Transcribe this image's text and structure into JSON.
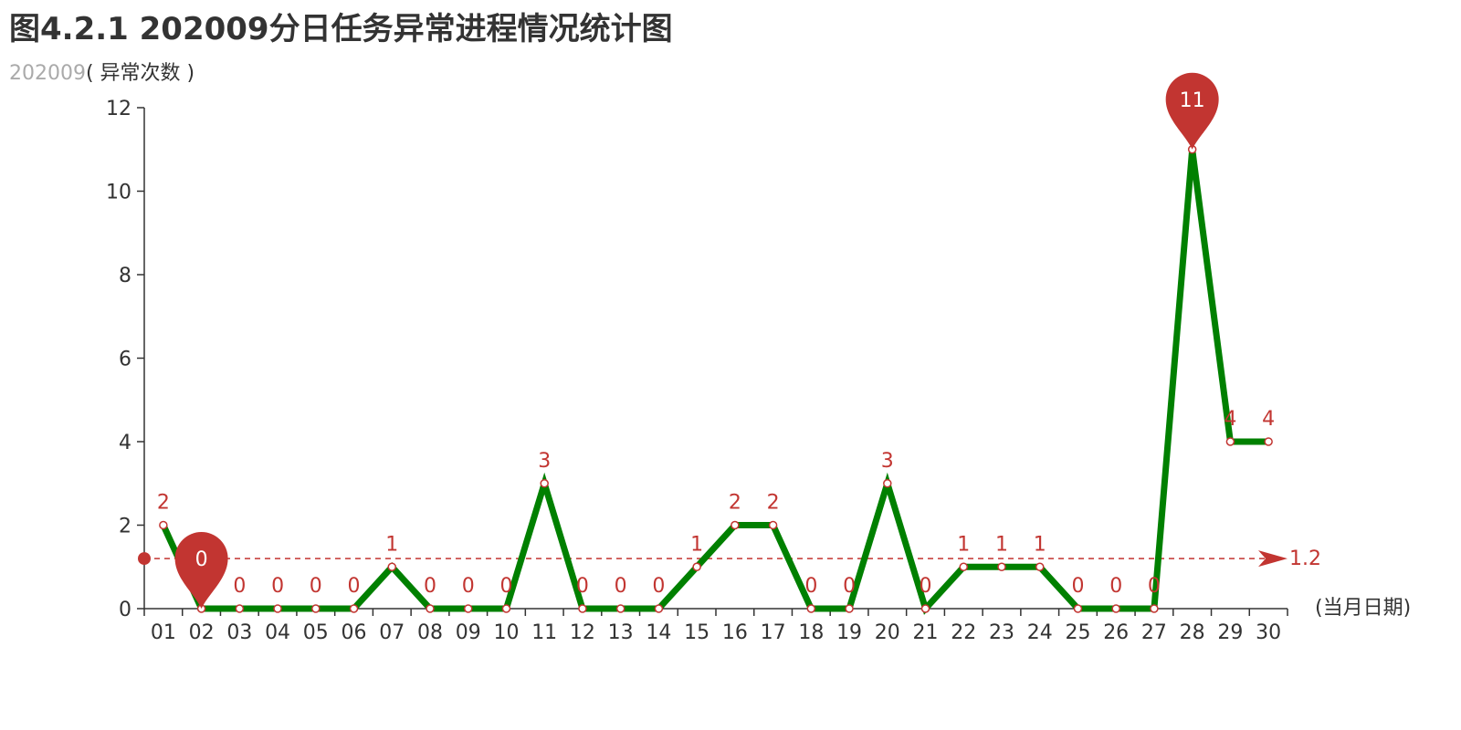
{
  "title": "图4.2.1 202009分日任务异常进程情况统计图",
  "subtitle": {
    "series_name": "202009",
    "unit": "( 异常次数 )"
  },
  "colors": {
    "line": "#008000",
    "marker": "#c23531",
    "axis": "#333333",
    "title": "#333333",
    "subtitle": "#aaaaaa"
  },
  "chart_data": {
    "type": "line",
    "title": "图4.2.1 202009分日任务异常进程情况统计图",
    "subtitle": "202009( 异常次数 )",
    "xlabel": "(当月日期)",
    "ylabel": "",
    "ylim": [
      0,
      12
    ],
    "yticks": [
      0,
      2,
      4,
      6,
      8,
      10,
      12
    ],
    "grid": false,
    "categories": [
      "01",
      "02",
      "03",
      "04",
      "05",
      "06",
      "07",
      "08",
      "09",
      "10",
      "11",
      "12",
      "13",
      "14",
      "15",
      "16",
      "17",
      "18",
      "19",
      "20",
      "21",
      "22",
      "23",
      "24",
      "25",
      "26",
      "27",
      "28",
      "29",
      "30"
    ],
    "series": [
      {
        "values": [
          2,
          0,
          0,
          0,
          0,
          0,
          1,
          0,
          0,
          0,
          3,
          0,
          0,
          0,
          1,
          2,
          2,
          0,
          0,
          3,
          0,
          1,
          1,
          1,
          0,
          0,
          0,
          11,
          4,
          4
        ]
      }
    ],
    "mark_points": [
      {
        "type": "min",
        "category": "02",
        "value": 0,
        "label": "0"
      },
      {
        "type": "max",
        "category": "28",
        "value": 11,
        "label": "11"
      }
    ],
    "mark_line": {
      "type": "average",
      "value": 1.2,
      "label": "1.2"
    }
  }
}
